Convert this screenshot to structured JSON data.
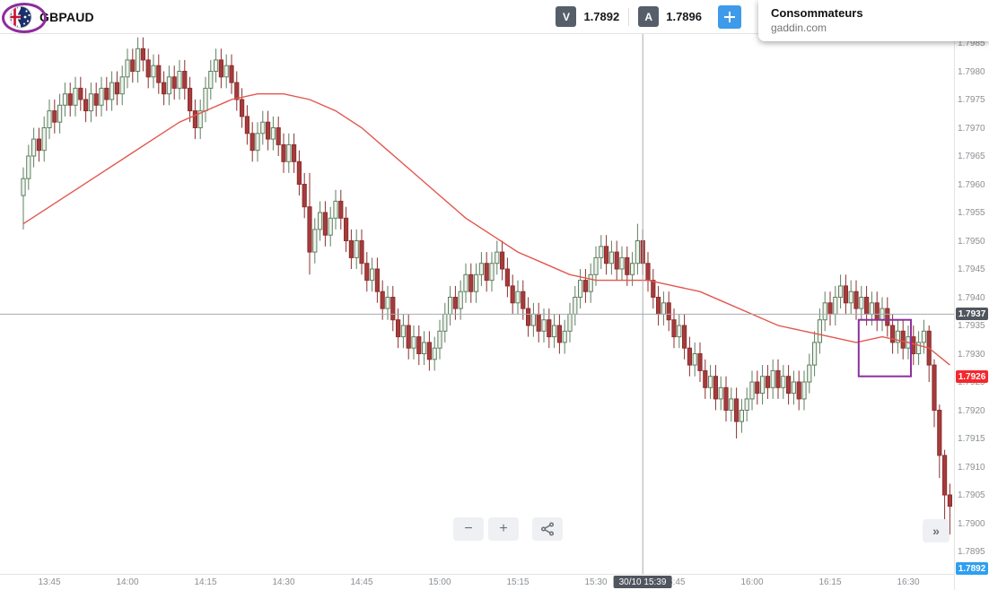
{
  "header": {
    "symbol": "GBPAUD",
    "sell_label": "V",
    "sell_price": "1.7892",
    "buy_label": "A",
    "buy_price": "1.7896",
    "accent_blue": "#3d9be9"
  },
  "popup": {
    "title": "Consommateurs",
    "source": "gaddin.com"
  },
  "controls": {
    "zoom_out": "−",
    "zoom_in": "+",
    "share_icon": "share",
    "collapse": "»"
  },
  "crosshair": {
    "time_label": "30/10 15:39",
    "time": "15:39",
    "price_label": "1.7937"
  },
  "price_markers": [
    {
      "label": "1.7937",
      "bg": "#50555e",
      "role": "crosshair-price"
    },
    {
      "label": "1.7926",
      "bg": "#f4282d",
      "role": "alert-level"
    },
    {
      "label": "1.7892",
      "bg": "#2f9ff0",
      "role": "current-price"
    }
  ],
  "annotations": {
    "highlight_box": {
      "from_time": "16:21",
      "to_time": "16:30",
      "top_price": "1.7936",
      "bottom_price": "1.7926",
      "color": "#8e2f9e"
    },
    "flag_circle_color": "#8d2d9c"
  },
  "chart_data": {
    "type": "candlestick",
    "symbol": "GBPAUD",
    "date_label": "30/10",
    "interval": "1m",
    "start_time": "13:40",
    "price_scale": 10000,
    "x_labels": [
      "13:45",
      "14:00",
      "14:15",
      "14:30",
      "14:45",
      "15:00",
      "15:15",
      "15:30",
      "15:45",
      "16:00",
      "16:15",
      "16:30"
    ],
    "y_tick_labels": [
      "1.7985",
      "1.7980",
      "1.7975",
      "1.7970",
      "1.7965",
      "1.7960",
      "1.7955",
      "1.7950",
      "1.7945",
      "1.7940",
      "1.7935",
      "1.7930",
      "1.7925",
      "1.7920",
      "1.7915",
      "1.7910",
      "1.7905",
      "1.7900",
      "1.7895"
    ],
    "ylim": [
      "1.7890",
      "1.7988"
    ],
    "grid": false,
    "colors": {
      "up_fill": "#edf3ed",
      "up_border": "#5f7f5f",
      "down_fill": "#a63b3b",
      "down_border": "#8c2f2f",
      "ma": "#e2574e",
      "crosshair": "#a7abb0"
    },
    "ma": {
      "name": "moving-average",
      "points": [
        [
          0,
          17953
        ],
        [
          5,
          17956
        ],
        [
          10,
          17959
        ],
        [
          15,
          17962
        ],
        [
          20,
          17965
        ],
        [
          25,
          17968
        ],
        [
          30,
          17971
        ],
        [
          35,
          17973
        ],
        [
          40,
          17975
        ],
        [
          45,
          17976
        ],
        [
          50,
          17976
        ],
        [
          55,
          17975
        ],
        [
          60,
          17973
        ],
        [
          65,
          17970
        ],
        [
          70,
          17966
        ],
        [
          75,
          17962
        ],
        [
          80,
          17958
        ],
        [
          85,
          17954
        ],
        [
          90,
          17951
        ],
        [
          95,
          17948
        ],
        [
          100,
          17946
        ],
        [
          105,
          17944
        ],
        [
          110,
          17943
        ],
        [
          115,
          17943
        ],
        [
          120,
          17943
        ],
        [
          125,
          17942
        ],
        [
          130,
          17941
        ],
        [
          135,
          17939
        ],
        [
          140,
          17937
        ],
        [
          145,
          17935
        ],
        [
          150,
          17934
        ],
        [
          155,
          17933
        ],
        [
          160,
          17932
        ],
        [
          165,
          17933
        ],
        [
          170,
          17932
        ],
        [
          174,
          17931
        ],
        [
          178,
          17928
        ]
      ]
    },
    "candles": [
      [
        17958,
        17963,
        17952,
        17961
      ],
      [
        17961,
        17967,
        17959,
        17965
      ],
      [
        17965,
        17970,
        17963,
        17968
      ],
      [
        17968,
        17970,
        17964,
        17966
      ],
      [
        17966,
        17972,
        17964,
        17970
      ],
      [
        17970,
        17975,
        17968,
        17973
      ],
      [
        17973,
        17975,
        17969,
        17971
      ],
      [
        17971,
        17976,
        17969,
        17974
      ],
      [
        17974,
        17978,
        17972,
        17976
      ],
      [
        17976,
        17978,
        17972,
        17974
      ],
      [
        17974,
        17979,
        17972,
        17977
      ],
      [
        17977,
        17979,
        17973,
        17975
      ],
      [
        17975,
        17977,
        17971,
        17973
      ],
      [
        17973,
        17978,
        17971,
        17976
      ],
      [
        17976,
        17978,
        17972,
        17974
      ],
      [
        17974,
        17979,
        17972,
        17977
      ],
      [
        17977,
        17979,
        17973,
        17975
      ],
      [
        17975,
        17980,
        17973,
        17978
      ],
      [
        17978,
        17980,
        17974,
        17976
      ],
      [
        17976,
        17981,
        17974,
        17979
      ],
      [
        17979,
        17984,
        17977,
        17982
      ],
      [
        17982,
        17984,
        17978,
        17980
      ],
      [
        17980,
        17986,
        17978,
        17984
      ],
      [
        17984,
        17986,
        17980,
        17982
      ],
      [
        17982,
        17984,
        17977,
        17979
      ],
      [
        17979,
        17983,
        17977,
        17981
      ],
      [
        17981,
        17983,
        17976,
        17978
      ],
      [
        17978,
        17980,
        17974,
        17976
      ],
      [
        17976,
        17981,
        17974,
        17979
      ],
      [
        17979,
        17981,
        17975,
        17977
      ],
      [
        17977,
        17982,
        17975,
        17980
      ],
      [
        17980,
        17982,
        17975,
        17977
      ],
      [
        17977,
        17979,
        17971,
        17973
      ],
      [
        17973,
        17975,
        17968,
        17970
      ],
      [
        17970,
        17975,
        17968,
        17973
      ],
      [
        17973,
        17979,
        17971,
        17977
      ],
      [
        17977,
        17982,
        17975,
        17980
      ],
      [
        17980,
        17984,
        17978,
        17982
      ],
      [
        17982,
        17984,
        17977,
        17979
      ],
      [
        17979,
        17983,
        17977,
        17981
      ],
      [
        17981,
        17983,
        17976,
        17978
      ],
      [
        17978,
        17980,
        17973,
        17975
      ],
      [
        17975,
        17977,
        17970,
        17972
      ],
      [
        17972,
        17974,
        17967,
        17969
      ],
      [
        17969,
        17971,
        17964,
        17966
      ],
      [
        17966,
        17971,
        17964,
        17969
      ],
      [
        17969,
        17973,
        17967,
        17971
      ],
      [
        17971,
        17973,
        17966,
        17968
      ],
      [
        17968,
        17972,
        17966,
        17970
      ],
      [
        17970,
        17972,
        17965,
        17967
      ],
      [
        17967,
        17969,
        17962,
        17964
      ],
      [
        17964,
        17969,
        17962,
        17967
      ],
      [
        17967,
        17969,
        17962,
        17964
      ],
      [
        17964,
        17966,
        17958,
        17960
      ],
      [
        17960,
        17962,
        17954,
        17956
      ],
      [
        17956,
        17962,
        17944,
        17948
      ],
      [
        17948,
        17954,
        17946,
        17952
      ],
      [
        17952,
        17957,
        17950,
        17955
      ],
      [
        17955,
        17957,
        17949,
        17951
      ],
      [
        17951,
        17956,
        17949,
        17954
      ],
      [
        17954,
        17959,
        17952,
        17957
      ],
      [
        17957,
        17959,
        17952,
        17954
      ],
      [
        17954,
        17956,
        17948,
        17950
      ],
      [
        17950,
        17952,
        17945,
        17947
      ],
      [
        17947,
        17952,
        17945,
        17950
      ],
      [
        17950,
        17952,
        17944,
        17946
      ],
      [
        17946,
        17948,
        17941,
        17943
      ],
      [
        17943,
        17947,
        17941,
        17945
      ],
      [
        17945,
        17947,
        17939,
        17941
      ],
      [
        17941,
        17943,
        17936,
        17938
      ],
      [
        17938,
        17942,
        17936,
        17940
      ],
      [
        17940,
        17942,
        17934,
        17936
      ],
      [
        17936,
        17938,
        17931,
        17933
      ],
      [
        17933,
        17937,
        17931,
        17935
      ],
      [
        17935,
        17937,
        17929,
        17931
      ],
      [
        17931,
        17935,
        17929,
        17933
      ],
      [
        17933,
        17935,
        17928,
        17930
      ],
      [
        17930,
        17934,
        17928,
        17932
      ],
      [
        17932,
        17934,
        17927,
        17929
      ],
      [
        17929,
        17933,
        17927,
        17931
      ],
      [
        17931,
        17936,
        17929,
        17934
      ],
      [
        17934,
        17939,
        17932,
        17937
      ],
      [
        17937,
        17942,
        17935,
        17940
      ],
      [
        17940,
        17942,
        17936,
        17938
      ],
      [
        17938,
        17943,
        17936,
        17941
      ],
      [
        17941,
        17946,
        17939,
        17944
      ],
      [
        17944,
        17946,
        17939,
        17941
      ],
      [
        17941,
        17946,
        17939,
        17944
      ],
      [
        17944,
        17948,
        17942,
        17946
      ],
      [
        17946,
        17948,
        17941,
        17943
      ],
      [
        17943,
        17948,
        17941,
        17946
      ],
      [
        17946,
        17950,
        17944,
        17948
      ],
      [
        17948,
        17950,
        17943,
        17945
      ],
      [
        17945,
        17947,
        17940,
        17942
      ],
      [
        17942,
        17944,
        17937,
        17939
      ],
      [
        17939,
        17943,
        17937,
        17941
      ],
      [
        17941,
        17943,
        17936,
        17938
      ],
      [
        17938,
        17940,
        17933,
        17935
      ],
      [
        17935,
        17939,
        17933,
        17937
      ],
      [
        17937,
        17939,
        17932,
        17934
      ],
      [
        17934,
        17938,
        17932,
        17936
      ],
      [
        17936,
        17938,
        17931,
        17933
      ],
      [
        17933,
        17937,
        17931,
        17935
      ],
      [
        17935,
        17937,
        17930,
        17932
      ],
      [
        17932,
        17936,
        17930,
        17934
      ],
      [
        17934,
        17939,
        17932,
        17937
      ],
      [
        17937,
        17942,
        17935,
        17940
      ],
      [
        17940,
        17945,
        17938,
        17943
      ],
      [
        17943,
        17945,
        17939,
        17941
      ],
      [
        17941,
        17946,
        17939,
        17944
      ],
      [
        17944,
        17949,
        17942,
        17947
      ],
      [
        17947,
        17951,
        17945,
        17949
      ],
      [
        17949,
        17951,
        17944,
        17946
      ],
      [
        17946,
        17950,
        17944,
        17948
      ],
      [
        17948,
        17950,
        17943,
        17945
      ],
      [
        17945,
        17949,
        17943,
        17947
      ],
      [
        17947,
        17949,
        17942,
        17944
      ],
      [
        17944,
        17948,
        17942,
        17946
      ],
      [
        17946,
        17953,
        17944,
        17950
      ],
      [
        17950,
        17952,
        17944,
        17946
      ],
      [
        17946,
        17948,
        17941,
        17943
      ],
      [
        17943,
        17945,
        17938,
        17940
      ],
      [
        17940,
        17942,
        17935,
        17937
      ],
      [
        17937,
        17941,
        17935,
        17939
      ],
      [
        17939,
        17941,
        17934,
        17936
      ],
      [
        17936,
        17938,
        17931,
        17933
      ],
      [
        17933,
        17937,
        17931,
        17935
      ],
      [
        17935,
        17937,
        17929,
        17931
      ],
      [
        17931,
        17933,
        17926,
        17928
      ],
      [
        17928,
        17932,
        17926,
        17930
      ],
      [
        17930,
        17932,
        17925,
        17927
      ],
      [
        17927,
        17929,
        17922,
        17924
      ],
      [
        17924,
        17928,
        17922,
        17926
      ],
      [
        17926,
        17928,
        17920,
        17922
      ],
      [
        17922,
        17926,
        17920,
        17924
      ],
      [
        17924,
        17926,
        17918,
        17920
      ],
      [
        17920,
        17924,
        17918,
        17922
      ],
      [
        17922,
        17924,
        17915,
        17918
      ],
      [
        17918,
        17922,
        17916,
        17920
      ],
      [
        17920,
        17924,
        17918,
        17922
      ],
      [
        17922,
        17927,
        17920,
        17925
      ],
      [
        17925,
        17927,
        17921,
        17923
      ],
      [
        17923,
        17928,
        17921,
        17926
      ],
      [
        17926,
        17928,
        17922,
        17924
      ],
      [
        17924,
        17929,
        17922,
        17927
      ],
      [
        17927,
        17929,
        17922,
        17924
      ],
      [
        17924,
        17928,
        17922,
        17926
      ],
      [
        17926,
        17928,
        17921,
        17923
      ],
      [
        17923,
        17927,
        17921,
        17925
      ],
      [
        17925,
        17927,
        17920,
        17922
      ],
      [
        17922,
        17927,
        17920,
        17925
      ],
      [
        17925,
        17930,
        17923,
        17928
      ],
      [
        17928,
        17934,
        17926,
        17932
      ],
      [
        17932,
        17938,
        17930,
        17936
      ],
      [
        17936,
        17941,
        17934,
        17939
      ],
      [
        17939,
        17941,
        17935,
        17937
      ],
      [
        17937,
        17942,
        17935,
        17940
      ],
      [
        17940,
        17944,
        17938,
        17942
      ],
      [
        17942,
        17944,
        17937,
        17939
      ],
      [
        17939,
        17943,
        17937,
        17941
      ],
      [
        17941,
        17943,
        17936,
        17938
      ],
      [
        17938,
        17942,
        17936,
        17940
      ],
      [
        17940,
        17942,
        17935,
        17937
      ],
      [
        17937,
        17941,
        17935,
        17939
      ],
      [
        17939,
        17941,
        17934,
        17936
      ],
      [
        17936,
        17940,
        17934,
        17938
      ],
      [
        17938,
        17940,
        17933,
        17935
      ],
      [
        17935,
        17937,
        17930,
        17932
      ],
      [
        17932,
        17936,
        17930,
        17934
      ],
      [
        17934,
        17936,
        17929,
        17931
      ],
      [
        17931,
        17935,
        17929,
        17933
      ],
      [
        17933,
        17935,
        17928,
        17930
      ],
      [
        17930,
        17934,
        17928,
        17932
      ],
      [
        17932,
        17936,
        17930,
        17934
      ],
      [
        17934,
        17935,
        17925,
        17928
      ],
      [
        17928,
        17929,
        17917,
        17920
      ],
      [
        17920,
        17921,
        17908,
        17912
      ],
      [
        17912,
        17913,
        17900,
        17905
      ],
      [
        17905,
        17907,
        17898,
        17903
      ]
    ]
  }
}
